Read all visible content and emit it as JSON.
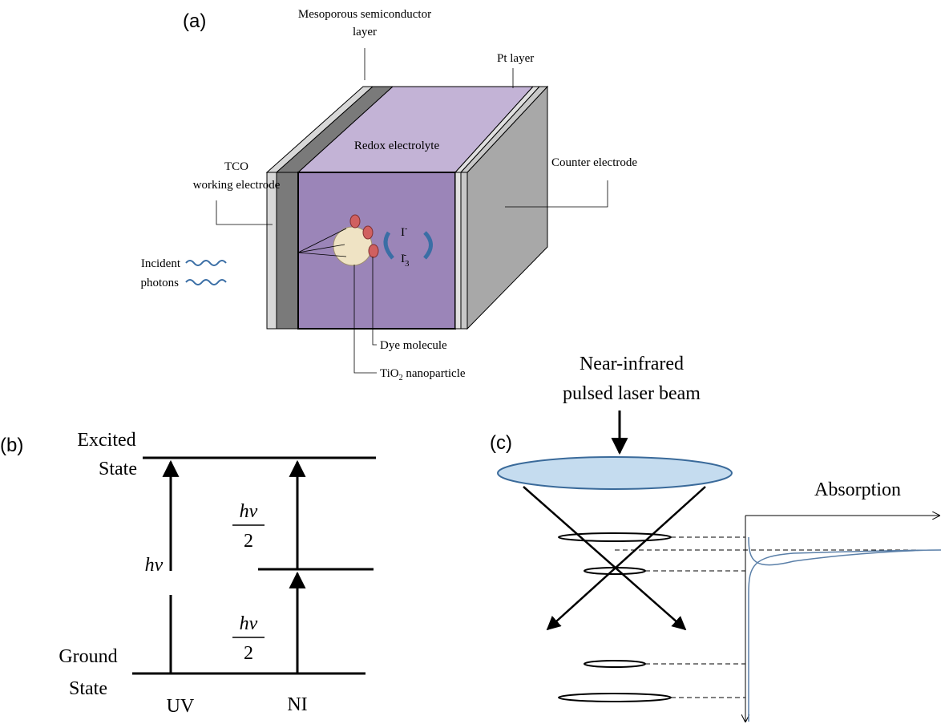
{
  "panel_a": {
    "label": "(a)",
    "mesoporous": [
      "Mesoporous semiconductor",
      "layer"
    ],
    "pt_layer": "Pt layer",
    "redox": "Redox electrolyte",
    "counter": "Counter electrode",
    "tco": [
      "TCO",
      "working electrode"
    ],
    "incident": [
      "Incident",
      "photons"
    ],
    "iodide": [
      "I",
      "-"
    ],
    "triiodide": [
      "I",
      "3",
      "-"
    ],
    "dye": "Dye molecule",
    "tio2": [
      "TiO",
      "2",
      " nanoparticle"
    ]
  },
  "panel_b": {
    "label": "(b)",
    "excited": [
      "Excited",
      "State"
    ],
    "ground": [
      "Ground",
      "State"
    ],
    "hv": "hv",
    "half_upper": [
      "hv",
      "2"
    ],
    "half_lower": [
      "hv",
      "2"
    ],
    "uv": "UV",
    "ni": "NI"
  },
  "panel_c": {
    "label": "(c)",
    "beam": [
      "Near-infrared",
      "pulsed laser beam"
    ],
    "absorption": "Absorption"
  }
}
